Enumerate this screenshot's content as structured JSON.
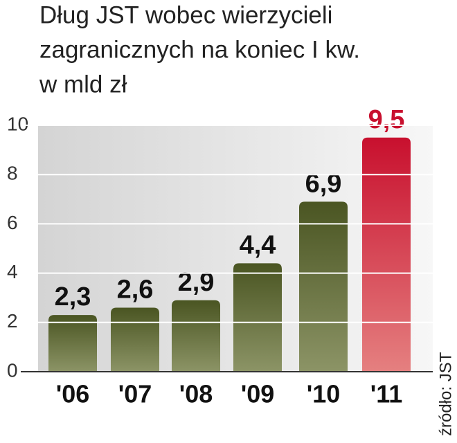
{
  "chart_data": {
    "type": "bar",
    "title_lines": [
      "Dług JST wobec wierzycieli",
      "zagranicznych na koniec I kw.",
      "w mld zł"
    ],
    "categories": [
      "'06",
      "'07",
      "'08",
      "'09",
      "'10",
      "'11"
    ],
    "values": [
      2.3,
      2.6,
      2.9,
      4.4,
      6.9,
      9.5
    ],
    "value_labels": [
      "2,3",
      "2,6",
      "2,9",
      "4,4",
      "6,9",
      "9,5"
    ],
    "colors": [
      "#5a6430",
      "#5a6430",
      "#5a6430",
      "#5a6430",
      "#5a6430",
      "#c8102e"
    ],
    "value_label_colors": [
      "#111111",
      "#111111",
      "#111111",
      "#111111",
      "#111111",
      "#c8102e"
    ],
    "ylim": [
      0,
      10
    ],
    "yticks": [
      0,
      2,
      4,
      6,
      8,
      10
    ],
    "grid": true,
    "source": "źródło: JST"
  }
}
